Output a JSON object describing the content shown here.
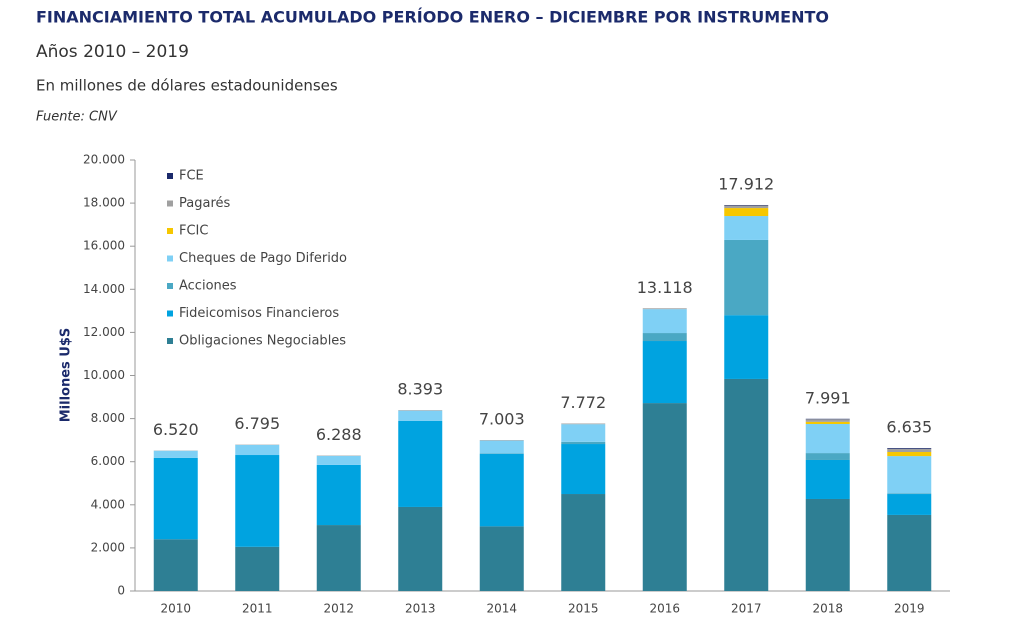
{
  "chart_data": {
    "type": "stacked_bar",
    "title": "FINANCIAMIENTO TOTAL ACUMULADO PERÍODO ENERO – DICIEMBRE POR INSTRUMENTO",
    "subtitle": "Años 2010 – 2019",
    "note": "En millones de dólares estadounidenses",
    "source": "Fuente: CNV",
    "y_label": "Millones U$S",
    "categories": [
      "2010",
      "2011",
      "2012",
      "2013",
      "2014",
      "2015",
      "2016",
      "2017",
      "2018",
      "2019"
    ],
    "series": [
      {
        "name": "Obligaciones Negociables",
        "color": "#2e7f94",
        "values": [
          2400,
          2050,
          3060,
          3900,
          3000,
          4500,
          8720,
          9840,
          4270,
          3530
        ]
      },
      {
        "name": "Fideicomisos Financieros",
        "color": "#00a3e0",
        "values": [
          3780,
          4260,
          2790,
          3990,
          3360,
          2320,
          2880,
          2960,
          1810,
          970
        ]
      },
      {
        "name": "Acciones",
        "color": "#4aa8c4",
        "values": [
          0,
          0,
          0,
          0,
          20,
          100,
          370,
          3490,
          320,
          30
        ]
      },
      {
        "name": "Cheques de Pago Diferido",
        "color": "#7fd0f5",
        "values": [
          330,
          470,
          420,
          480,
          600,
          820,
          1110,
          1110,
          1350,
          1730
        ]
      },
      {
        "name": "FCIC",
        "color": "#f6c700",
        "values": [
          0,
          0,
          0,
          0,
          0,
          0,
          0,
          370,
          100,
          190
        ]
      },
      {
        "name": "Pagarés",
        "color": "#a0a0a0",
        "values": [
          10,
          15,
          18,
          23,
          23,
          32,
          38,
          120,
          120,
          150
        ]
      },
      {
        "name": "FCE",
        "color": "#1b2a6b",
        "values": [
          0,
          0,
          0,
          0,
          0,
          0,
          0,
          22,
          21,
          35
        ]
      }
    ],
    "totals": {
      "values": [
        6520,
        6795,
        6288,
        8393,
        7003,
        7772,
        13118,
        17912,
        7991,
        6635
      ],
      "value_labels": [
        "6.520",
        "6.795",
        "6.288",
        "8.393",
        "7.003",
        "7.772",
        "13.118",
        "17.912",
        "7.991",
        "6.635"
      ]
    },
    "ylim": [
      0,
      20000
    ],
    "yticks": [
      0,
      {
        "value": 2000,
        "label": "2.000"
      },
      {
        "value": 4000,
        "label": "4.000"
      },
      {
        "value": 6000,
        "label": "6.000"
      },
      {
        "value": 8000,
        "label": "8.000"
      },
      {
        "value": 10000,
        "label": "10.000"
      },
      {
        "value": 12000,
        "label": "12.000"
      },
      {
        "value": 14000,
        "label": "14.000"
      },
      {
        "value": 16000,
        "label": "16.000"
      },
      {
        "value": 18000,
        "label": "18.000"
      },
      {
        "value": 20000,
        "label": "20.000"
      }
    ],
    "legend": "upper left"
  }
}
